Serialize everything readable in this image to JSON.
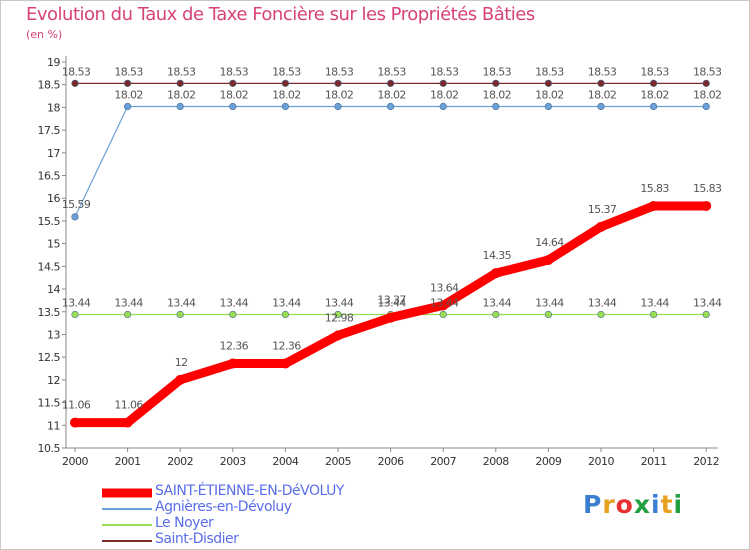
{
  "header": {
    "title": "Evolution du Taux de Taxe Foncière sur les Propriétés Bâties",
    "unit": "(en %)"
  },
  "logo": {
    "letters": [
      "P",
      "r",
      "o",
      "x",
      "i",
      "t",
      "i"
    ],
    "colors": [
      "#3a7fd0",
      "#e8a020",
      "#e83030",
      "#20a040",
      "#3a7fd0",
      "#e8a020",
      "#20a040"
    ]
  },
  "chart_data": {
    "type": "line",
    "title": "Evolution du Taux de Taxe Foncière sur les Propriétés Bâties",
    "ylabel": "(en %)",
    "xlabel": "",
    "x": [
      "2000",
      "2001",
      "2002",
      "2003",
      "2004",
      "2005",
      "2006",
      "2007",
      "2008",
      "2009",
      "2010",
      "2011",
      "2012"
    ],
    "ylim": [
      10.5,
      19
    ],
    "yticks": [
      "10.5",
      "11",
      "11.5",
      "12",
      "12.5",
      "13",
      "13.5",
      "14",
      "14.5",
      "15",
      "15.5",
      "16",
      "16.5",
      "17",
      "17.5",
      "18",
      "18.5",
      "19"
    ],
    "grid": false,
    "legend_position": "bottom-left",
    "series": [
      {
        "name": "SAINT-ÉTIENNE-EN-DéVOLUY",
        "color": "#ff0000",
        "values": [
          11.06,
          11.06,
          12,
          12.36,
          12.36,
          12.98,
          13.37,
          13.64,
          14.35,
          14.64,
          15.37,
          15.83,
          15.83
        ]
      },
      {
        "name": "Agnières-en-Dévoluy",
        "color": "#6aa0d8",
        "values": [
          15.59,
          18.02,
          18.02,
          18.02,
          18.02,
          18.02,
          18.02,
          18.02,
          18.02,
          18.02,
          18.02,
          18.02,
          18.02
        ]
      },
      {
        "name": "Le Noyer",
        "color": "#99dd55",
        "values": [
          13.44,
          13.44,
          13.44,
          13.44,
          13.44,
          13.44,
          13.44,
          13.44,
          13.44,
          13.44,
          13.44,
          13.44,
          13.44
        ]
      },
      {
        "name": "Saint-Disdier",
        "color": "#7a2a2a",
        "values": [
          18.53,
          18.53,
          18.53,
          18.53,
          18.53,
          18.53,
          18.53,
          18.53,
          18.53,
          18.53,
          18.53,
          18.53,
          18.53
        ]
      }
    ]
  }
}
